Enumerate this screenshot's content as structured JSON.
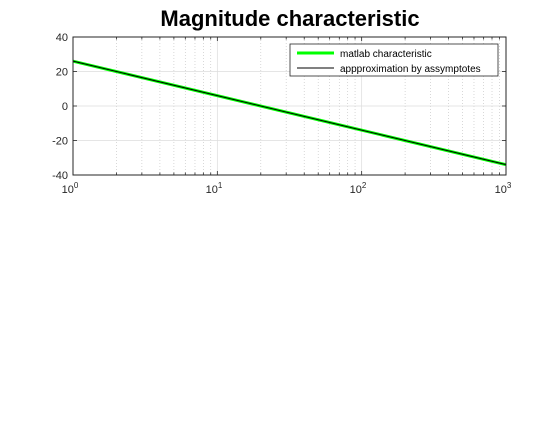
{
  "figure": {
    "background": "#ffffff"
  },
  "chart_data": {
    "type": "line",
    "title": "Magnitude characteristic",
    "xlabel": "",
    "ylabel": "",
    "xscale": "log",
    "xlim": [
      1,
      1000
    ],
    "ylim": [
      -40,
      40
    ],
    "yticks": [
      40,
      20,
      0,
      -20,
      -40
    ],
    "yticklabels": [
      "40",
      "20",
      "0",
      "-20",
      "-40"
    ],
    "xticks": [
      1,
      10,
      100,
      1000
    ],
    "xtick_base": "10",
    "xtick_exponents": [
      "0",
      "1",
      "2",
      "3"
    ],
    "grid": true,
    "legend_position": "top-right",
    "series": [
      {
        "name": "matlab characteristic",
        "color": "#00ff00",
        "line_width_class": "thick",
        "x": [
          1,
          1000
        ],
        "y": [
          26,
          -34
        ]
      },
      {
        "name": "appproximation by assymptotes",
        "color": "#000000",
        "line_width_class": "thin",
        "x": [
          1,
          1000
        ],
        "y": [
          26,
          -34
        ]
      }
    ]
  }
}
